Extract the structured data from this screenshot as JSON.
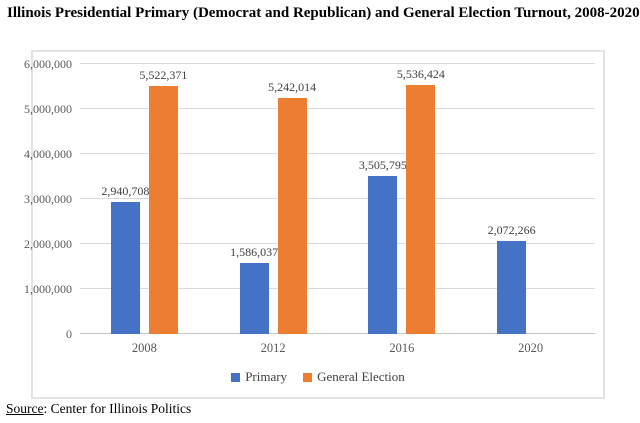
{
  "page": {
    "title": "Illinois Presidential Primary (Democrat and Republican) and General Election Turnout, 2008-2020",
    "source": {
      "label": "Source",
      "rest": ": Center for Illinois Politics"
    }
  },
  "chart_data": {
    "type": "bar",
    "title": "Illinois Presidential Primary (Democrat and Republican) and General Election Turnout, 2008-2020",
    "categories": [
      "2008",
      "2012",
      "2016",
      "2020"
    ],
    "series": [
      {
        "name": "Primary",
        "color": "#4472C4",
        "values": [
          2940708,
          1586037,
          3505795,
          2072266
        ]
      },
      {
        "name": "General Election",
        "color": "#ED7D31",
        "values": [
          5522371,
          5242014,
          5536424,
          null
        ]
      }
    ],
    "data_labels": {
      "Primary": [
        "2,940,708",
        "1,586,037",
        "3,505,795",
        "2,072,266"
      ],
      "General Election": [
        "5,522,371",
        "5,242,014",
        "5,536,424",
        ""
      ]
    },
    "xlabel": "",
    "ylabel": "",
    "ylim": [
      0,
      6000000
    ],
    "ytick_interval": 1000000,
    "ytick_labels": [
      "0",
      "1,000,000",
      "2,000,000",
      "3,000,000",
      "4,000,000",
      "5,000,000",
      "6,000,000"
    ],
    "grid": true,
    "legend_position": "bottom",
    "colors": {
      "primary_series": "#4472C4",
      "general_election_series": "#ED7D31",
      "gridline": "#D9D9D9",
      "axis_labels": "#595959",
      "data_labels": "#404040"
    }
  }
}
